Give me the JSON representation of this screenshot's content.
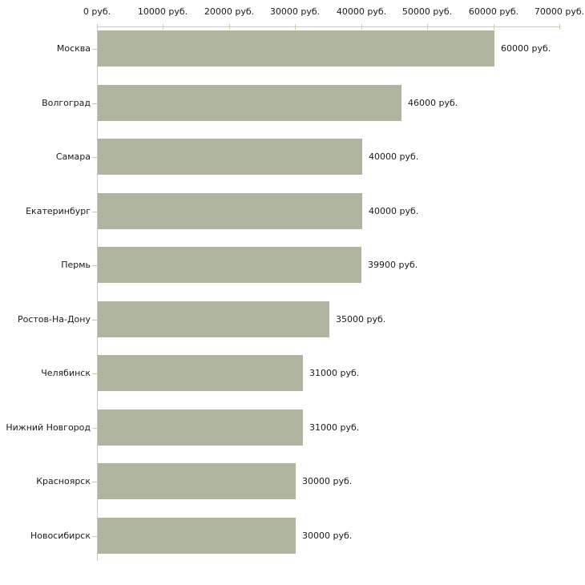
{
  "chart_data": {
    "type": "bar",
    "orientation": "horizontal",
    "title": "",
    "xlabel": "",
    "ylabel": "",
    "unit": "руб.",
    "categories": [
      "Москва",
      "Волгоград",
      "Самара",
      "Екатеринбург",
      "Пермь",
      "Ростов-На-Дону",
      "Челябинск",
      "Нижний Новгород",
      "Красноярск",
      "Новосибирск"
    ],
    "values": [
      60000,
      46000,
      40000,
      40000,
      39900,
      35000,
      31000,
      31000,
      30000,
      30000
    ],
    "value_labels": [
      "60000 руб.",
      "46000 руб.",
      "40000 руб.",
      "40000 руб.",
      "39900 руб.",
      "35000 руб.",
      "31000 руб.",
      "31000 руб.",
      "30000 руб.",
      "30000 руб."
    ],
    "x_axis": {
      "position": "top",
      "min": 0,
      "max": 70000,
      "tick_interval": 10000,
      "tick_labels": [
        "0 руб.",
        "10000 руб.",
        "20000 руб.",
        "30000 руб.",
        "40000 руб.",
        "50000 руб.",
        "60000 руб.",
        "70000 руб."
      ]
    },
    "grid": "off",
    "legend": "none",
    "colors": {
      "bar": "#aeb49d",
      "axis_line": "#c9c9c9",
      "tick_mark": "#c9caa5",
      "text": "#1a1a1a",
      "background": "#ffffff"
    }
  }
}
